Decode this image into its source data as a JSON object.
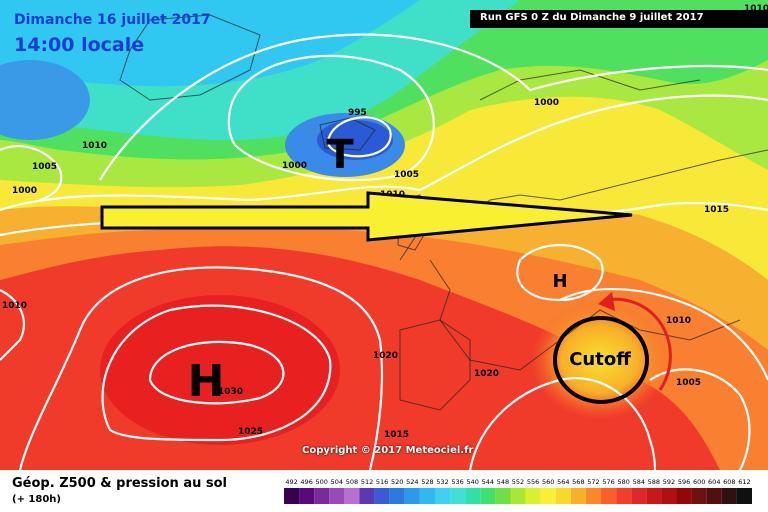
{
  "header": {
    "date": "Dimanche 16 juillet 2017",
    "time": "14:00 locale",
    "run": "Run GFS 0 Z du Dimanche 9 juillet 2017"
  },
  "map": {
    "pressure_labels": {
      "p1": "995",
      "p2": "1000",
      "p3": "1005",
      "p4": "1010",
      "p5": "1000",
      "p6": "1005",
      "p7": "1000",
      "p8": "1010",
      "p9": "1015",
      "p10": "1015",
      "p11": "1010",
      "p12": "1020",
      "p13": "1020",
      "p14": "1025",
      "p15": "1030",
      "p16": "1015",
      "p17": "1010",
      "p18": "1005",
      "p19": "1010"
    },
    "symbols": {
      "low": "T",
      "high_atlantic": "H",
      "high_europe": "H"
    },
    "cutoff_label": "Cutoff",
    "copyright": "Copyright © 2017 Meteociel.fr"
  },
  "footer": {
    "title": "Géop. Z500 & pression au sol",
    "subtitle": "(+ 180h)",
    "scale_labels": [
      "492",
      "496",
      "500",
      "504",
      "508",
      "512",
      "516",
      "520",
      "524",
      "528",
      "532",
      "536",
      "540",
      "544",
      "548",
      "552",
      "556",
      "560",
      "564",
      "568",
      "572",
      "576",
      "580",
      "584",
      "588",
      "592",
      "596",
      "600",
      "604",
      "608",
      "612"
    ],
    "scale_colors": [
      "#3a0050",
      "#5a0a78",
      "#7a2a9a",
      "#9a4ab8",
      "#b870d0",
      "#5a3ab0",
      "#3a5ad6",
      "#2a7ae0",
      "#2a9aea",
      "#30b8f0",
      "#40d0f0",
      "#40e0d8",
      "#30e0a8",
      "#40e070",
      "#70e040",
      "#a8e830",
      "#d8f030",
      "#f8f030",
      "#f8d828",
      "#f8b028",
      "#f88828",
      "#f86028",
      "#f04028",
      "#e02828",
      "#c81818",
      "#b01010",
      "#900808",
      "#701010",
      "#501010",
      "#301010",
      "#101010"
    ]
  },
  "colors": {
    "polar_blue": "#2a7ae0",
    "cyan": "#30c8f0",
    "green": "#50e060",
    "yellow": "#f8f030",
    "orange": "#f8a030",
    "red": "#f03028",
    "darkred": "#e02020",
    "cutoff_arrow": "#e02020"
  }
}
